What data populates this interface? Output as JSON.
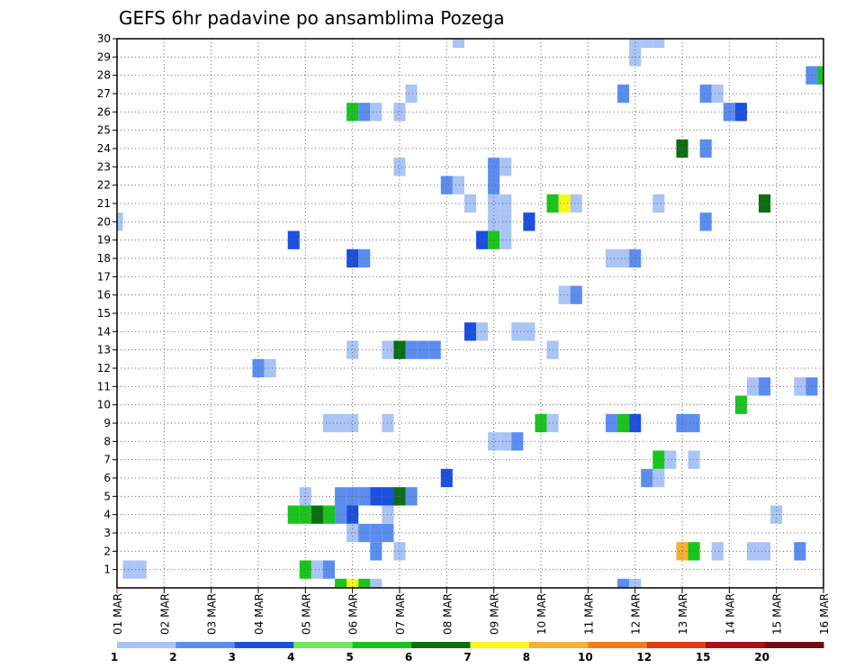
{
  "chart_data": {
    "type": "heatmap",
    "title": "GEFS 6hr padavine po ansamblima Pozega",
    "xlabel": "",
    "ylabel": "",
    "x_ticks": [
      "01 MAR",
      "02 MAR",
      "03 MAR",
      "04 MAR",
      "05 MAR",
      "06 MAR",
      "07 MAR",
      "08 MAR",
      "09 MAR",
      "10 MAR",
      "11 MAR",
      "12 MAR",
      "13 MAR",
      "14 MAR",
      "15 MAR",
      "16 MAR"
    ],
    "y_ticks": [
      "1",
      "2",
      "3",
      "4",
      "5",
      "6",
      "7",
      "8",
      "9",
      "10",
      "11",
      "12",
      "13",
      "14",
      "15",
      "16",
      "17",
      "18",
      "19",
      "20",
      "21",
      "22",
      "23",
      "24",
      "25",
      "26",
      "27",
      "28",
      "29",
      "30"
    ],
    "x_step_per_day": 4,
    "x_range": [
      0,
      60
    ],
    "y_range": [
      0,
      30
    ],
    "grid": true,
    "colorbar": {
      "labels": [
        "1",
        "2",
        "3",
        "4",
        "5",
        "6",
        "7",
        "8",
        "10",
        "12",
        "15",
        "20"
      ],
      "colors": [
        "#a9c4f5",
        "#5b8df0",
        "#1a4fe0",
        "#6fe85a",
        "#19c41e",
        "#0c6e12",
        "#f8f817",
        "#f5b035",
        "#f47a1c",
        "#e23b10",
        "#a8101a",
        "#6e0d12"
      ]
    },
    "cells": [
      {
        "t": 0,
        "m": 19,
        "c": 0
      },
      {
        "t": 1,
        "m": 0,
        "c": 0
      },
      {
        "t": 2,
        "m": 0,
        "c": 0
      },
      {
        "t": 12,
        "m": 11,
        "c": 1
      },
      {
        "t": 13,
        "m": 11,
        "c": 0
      },
      {
        "t": 15,
        "m": 18,
        "c": 2
      },
      {
        "t": 15,
        "m": 3,
        "c": 4
      },
      {
        "t": 16,
        "m": 3,
        "c": 4
      },
      {
        "t": 17,
        "m": 3,
        "c": 5
      },
      {
        "t": 18,
        "m": 3,
        "c": 4
      },
      {
        "t": 16,
        "m": 4,
        "c": 0
      },
      {
        "t": 16,
        "m": 0,
        "c": 4
      },
      {
        "t": 17,
        "m": 0,
        "c": 0
      },
      {
        "t": 18,
        "m": 0,
        "c": 1
      },
      {
        "t": 18,
        "m": 8,
        "c": 0
      },
      {
        "t": 19,
        "m": 8,
        "c": 0
      },
      {
        "t": 20,
        "m": 8,
        "c": 0
      },
      {
        "t": 19,
        "m": 4,
        "c": 1
      },
      {
        "t": 20,
        "m": 4,
        "c": 1
      },
      {
        "t": 21,
        "m": 4,
        "c": 1
      },
      {
        "t": 19,
        "m": 3,
        "c": 1
      },
      {
        "t": 20,
        "m": 3,
        "c": 2
      },
      {
        "t": 20,
        "m": 2,
        "c": 0
      },
      {
        "t": 21,
        "m": 2,
        "c": 1
      },
      {
        "t": 22,
        "m": 2,
        "c": 1
      },
      {
        "t": 23,
        "m": 2,
        "c": 1
      },
      {
        "t": 20,
        "m": 17,
        "c": 2
      },
      {
        "t": 21,
        "m": 17,
        "c": 1
      },
      {
        "t": 20,
        "m": 12,
        "c": 0
      },
      {
        "t": 20,
        "m": 25,
        "c": 4
      },
      {
        "t": 21,
        "m": 25,
        "c": 1
      },
      {
        "t": 22,
        "m": 25,
        "c": 0
      },
      {
        "t": 19,
        "m": -1,
        "c": 4
      },
      {
        "t": 20,
        "m": -1,
        "c": 6
      },
      {
        "t": 21,
        "m": -1,
        "c": 4
      },
      {
        "t": 22,
        "m": -1,
        "c": 0
      },
      {
        "t": 22,
        "m": 4,
        "c": 2
      },
      {
        "t": 23,
        "m": 4,
        "c": 2
      },
      {
        "t": 24,
        "m": 4,
        "c": 5
      },
      {
        "t": 25,
        "m": 4,
        "c": 1
      },
      {
        "t": 23,
        "m": 3,
        "c": 0
      },
      {
        "t": 22,
        "m": 1,
        "c": 1
      },
      {
        "t": 24,
        "m": 1,
        "c": 0
      },
      {
        "t": 23,
        "m": 8,
        "c": 0
      },
      {
        "t": 23,
        "m": 12,
        "c": 0
      },
      {
        "t": 24,
        "m": 12,
        "c": 5
      },
      {
        "t": 25,
        "m": 12,
        "c": 1
      },
      {
        "t": 24,
        "m": 22,
        "c": 0
      },
      {
        "t": 24,
        "m": 25,
        "c": 0
      },
      {
        "t": 25,
        "m": 26,
        "c": 0
      },
      {
        "t": 26,
        "m": 12,
        "c": 1
      },
      {
        "t": 27,
        "m": 12,
        "c": 1
      },
      {
        "t": 28,
        "m": 5,
        "c": 2
      },
      {
        "t": 28,
        "m": 21,
        "c": 1
      },
      {
        "t": 29,
        "m": 21,
        "c": 0
      },
      {
        "t": 29,
        "m": 29,
        "c": 0
      },
      {
        "t": 30,
        "m": 13,
        "c": 2
      },
      {
        "t": 31,
        "m": 13,
        "c": 0
      },
      {
        "t": 30,
        "m": 20,
        "c": 0
      },
      {
        "t": 31,
        "m": 18,
        "c": 2
      },
      {
        "t": 32,
        "m": 18,
        "c": 4
      },
      {
        "t": 33,
        "m": 18,
        "c": 0
      },
      {
        "t": 32,
        "m": 7,
        "c": 0
      },
      {
        "t": 33,
        "m": 7,
        "c": 0
      },
      {
        "t": 34,
        "m": 7,
        "c": 1
      },
      {
        "t": 32,
        "m": 19,
        "c": 0
      },
      {
        "t": 33,
        "m": 19,
        "c": 0
      },
      {
        "t": 32,
        "m": 20,
        "c": 0
      },
      {
        "t": 33,
        "m": 20,
        "c": 0
      },
      {
        "t": 32,
        "m": 21,
        "c": 1
      },
      {
        "t": 32,
        "m": 22,
        "c": 1
      },
      {
        "t": 33,
        "m": 22,
        "c": 0
      },
      {
        "t": 34,
        "m": 13,
        "c": 0
      },
      {
        "t": 35,
        "m": 13,
        "c": 0
      },
      {
        "t": 35,
        "m": 19,
        "c": 2
      },
      {
        "t": 36,
        "m": 8,
        "c": 4
      },
      {
        "t": 37,
        "m": 8,
        "c": 0
      },
      {
        "t": 37,
        "m": 12,
        "c": 0
      },
      {
        "t": 37,
        "m": 20,
        "c": 4
      },
      {
        "t": 38,
        "m": 20,
        "c": 6
      },
      {
        "t": 39,
        "m": 20,
        "c": 0
      },
      {
        "t": 38,
        "m": 15,
        "c": 0
      },
      {
        "t": 39,
        "m": 15,
        "c": 1
      },
      {
        "t": 42,
        "m": 17,
        "c": 0
      },
      {
        "t": 43,
        "m": 17,
        "c": 0
      },
      {
        "t": 44,
        "m": 17,
        "c": 1
      },
      {
        "t": 42,
        "m": 8,
        "c": 1
      },
      {
        "t": 43,
        "m": 8,
        "c": 4
      },
      {
        "t": 44,
        "m": 8,
        "c": 2
      },
      {
        "t": 43,
        "m": -1,
        "c": 1
      },
      {
        "t": 44,
        "m": -1,
        "c": 0
      },
      {
        "t": 43,
        "m": 26,
        "c": 1
      },
      {
        "t": 44,
        "m": 28,
        "c": 0
      },
      {
        "t": 44,
        "m": 29,
        "c": 0
      },
      {
        "t": 45,
        "m": 29,
        "c": 0
      },
      {
        "t": 46,
        "m": 29,
        "c": 0
      },
      {
        "t": 45,
        "m": 5,
        "c": 1
      },
      {
        "t": 46,
        "m": 5,
        "c": 0
      },
      {
        "t": 46,
        "m": 20,
        "c": 0
      },
      {
        "t": 46,
        "m": 6,
        "c": 4
      },
      {
        "t": 47,
        "m": 6,
        "c": 0
      },
      {
        "t": 48,
        "m": 23,
        "c": 5
      },
      {
        "t": 48,
        "m": 1,
        "c": 7
      },
      {
        "t": 49,
        "m": 1,
        "c": 4
      },
      {
        "t": 48,
        "m": 8,
        "c": 1
      },
      {
        "t": 49,
        "m": 8,
        "c": 1
      },
      {
        "t": 49,
        "m": 6,
        "c": 0
      },
      {
        "t": 50,
        "m": 26,
        "c": 1
      },
      {
        "t": 51,
        "m": 26,
        "c": 0
      },
      {
        "t": 50,
        "m": 23,
        "c": 1
      },
      {
        "t": 50,
        "m": 19,
        "c": 1
      },
      {
        "t": 51,
        "m": 1,
        "c": 0
      },
      {
        "t": 52,
        "m": 25,
        "c": 1
      },
      {
        "t": 53,
        "m": 25,
        "c": 2
      },
      {
        "t": 53,
        "m": 9,
        "c": 4
      },
      {
        "t": 54,
        "m": 10,
        "c": 0
      },
      {
        "t": 55,
        "m": 10,
        "c": 1
      },
      {
        "t": 54,
        "m": 1,
        "c": 0
      },
      {
        "t": 55,
        "m": 1,
        "c": 0
      },
      {
        "t": 55,
        "m": 20,
        "c": 5
      },
      {
        "t": 56,
        "m": 3,
        "c": 0
      },
      {
        "t": 58,
        "m": 10,
        "c": 0
      },
      {
        "t": 59,
        "m": 10,
        "c": 1
      },
      {
        "t": 58,
        "m": 1,
        "c": 1
      },
      {
        "t": 59,
        "m": 27,
        "c": 1
      },
      {
        "t": 60,
        "m": 27,
        "c": 4
      }
    ]
  }
}
